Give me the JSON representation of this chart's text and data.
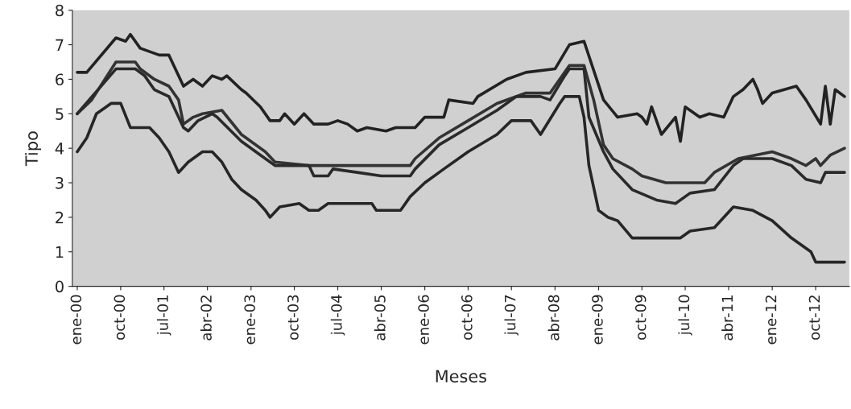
{
  "chart_data": {
    "type": "line",
    "xlabel": "Meses",
    "ylabel": "Tipo",
    "xlim": [
      "1999-12",
      "2013-05"
    ],
    "ylim": [
      0,
      8
    ],
    "yticks": [
      0,
      1,
      2,
      3,
      4,
      5,
      6,
      7,
      8
    ],
    "xticks": [
      {
        "value": "2000-01",
        "label": "ene-00"
      },
      {
        "value": "2000-10",
        "label": "oct-00"
      },
      {
        "value": "2001-07",
        "label": "jul-01"
      },
      {
        "value": "2002-04",
        "label": "abr-02"
      },
      {
        "value": "2003-01",
        "label": "ene-03"
      },
      {
        "value": "2003-10",
        "label": "oct-03"
      },
      {
        "value": "2004-07",
        "label": "jul-04"
      },
      {
        "value": "2005-04",
        "label": "abr-05"
      },
      {
        "value": "2006-01",
        "label": "ene-06"
      },
      {
        "value": "2006-10",
        "label": "oct-06"
      },
      {
        "value": "2007-07",
        "label": "jul-07"
      },
      {
        "value": "2008-04",
        "label": "abr-08"
      },
      {
        "value": "2009-01",
        "label": "ene-09"
      },
      {
        "value": "2009-10",
        "label": "oct-09"
      },
      {
        "value": "2010-07",
        "label": "jul-10"
      },
      {
        "value": "2011-04",
        "label": "abr-11"
      },
      {
        "value": "2012-01",
        "label": "ene-12"
      },
      {
        "value": "2012-10",
        "label": "oct-12"
      }
    ],
    "grid": false,
    "series": [
      {
        "color": "#222222",
        "x": [
          "2000-01",
          "2000-03",
          "2000-09",
          "2000-11",
          "2000-12",
          "2001-02",
          "2001-06",
          "2001-08",
          "2001-11",
          "2002-01",
          "2002-03",
          "2002-05",
          "2002-07",
          "2002-08",
          "2002-11",
          "2002-12",
          "2003-03",
          "2003-05",
          "2003-07",
          "2003-08",
          "2003-10",
          "2003-12",
          "2004-02",
          "2004-05",
          "2004-07",
          "2004-09",
          "2004-11",
          "2005-01",
          "2005-05",
          "2005-07",
          "2005-11",
          "2006-01",
          "2006-05",
          "2006-06",
          "2006-11",
          "2006-12",
          "2007-06",
          "2007-10",
          "2008-04",
          "2008-07",
          "2008-10",
          "2009-02",
          "2009-05",
          "2009-09",
          "2009-10",
          "2009-11",
          "2009-12",
          "2010-02",
          "2010-05",
          "2010-06",
          "2010-07",
          "2010-10",
          "2010-12",
          "2011-03",
          "2011-05",
          "2011-07",
          "2011-09",
          "2011-10",
          "2011-11",
          "2012-01",
          "2012-06",
          "2012-08",
          "2012-11",
          "2012-12",
          "2013-01",
          "2013-02",
          "2013-04"
        ],
        "values": [
          6.2,
          6.2,
          7.2,
          7.1,
          7.3,
          6.9,
          6.7,
          6.7,
          5.8,
          6.0,
          5.8,
          6.1,
          6.0,
          6.1,
          5.7,
          5.6,
          5.2,
          4.8,
          4.8,
          5.0,
          4.7,
          5.0,
          4.7,
          4.7,
          4.8,
          4.7,
          4.5,
          4.6,
          4.5,
          4.6,
          4.6,
          4.9,
          4.9,
          5.4,
          5.3,
          5.5,
          6.0,
          6.2,
          6.3,
          7.0,
          7.1,
          5.4,
          4.9,
          5.0,
          4.9,
          4.7,
          5.2,
          4.4,
          4.9,
          4.2,
          5.2,
          4.9,
          5.0,
          4.9,
          5.5,
          5.7,
          6.0,
          5.7,
          5.3,
          5.6,
          5.8,
          5.4,
          4.7,
          5.8,
          4.7,
          5.7,
          5.5
        ]
      },
      {
        "color": "#333333",
        "x": [
          "2000-01",
          "2000-04",
          "2000-09",
          "2001-01",
          "2001-02",
          "2001-05",
          "2001-08",
          "2001-10",
          "2001-11",
          "2002-01",
          "2002-03",
          "2002-07",
          "2002-11",
          "2003-04",
          "2003-06",
          "2004-01",
          "2005-10",
          "2005-11",
          "2006-04",
          "2006-10",
          "2007-04",
          "2007-10",
          "2008-03",
          "2008-07",
          "2008-10",
          "2008-12",
          "2009-02",
          "2009-04",
          "2009-08",
          "2009-10",
          "2010-03",
          "2010-11",
          "2011-01",
          "2011-06",
          "2012-01",
          "2012-05",
          "2012-08",
          "2012-10",
          "2012-11",
          "2013-01",
          "2013-04"
        ],
        "values": [
          5.0,
          5.4,
          6.5,
          6.5,
          6.3,
          6.0,
          5.8,
          5.4,
          4.7,
          4.9,
          5.0,
          5.1,
          4.4,
          3.9,
          3.6,
          3.5,
          3.5,
          3.7,
          4.3,
          4.8,
          5.3,
          5.6,
          5.6,
          6.4,
          6.4,
          5.4,
          4.1,
          3.7,
          3.4,
          3.2,
          3.0,
          3.0,
          3.3,
          3.7,
          3.9,
          3.7,
          3.5,
          3.7,
          3.5,
          3.8,
          4.0
        ]
      },
      {
        "color": "#2a2a2a",
        "x": [
          "2000-01",
          "2000-09",
          "2001-01",
          "2001-03",
          "2001-05",
          "2001-08",
          "2001-11",
          "2001-12",
          "2002-02",
          "2002-05",
          "2002-06",
          "2002-11",
          "2003-04",
          "2003-06",
          "2004-01",
          "2004-02",
          "2004-05",
          "2004-06",
          "2004-11",
          "2005-04",
          "2005-10",
          "2005-11",
          "2006-04",
          "2006-10",
          "2007-04",
          "2007-08",
          "2008-01",
          "2008-03",
          "2008-06",
          "2008-07",
          "2008-10",
          "2008-11",
          "2009-02",
          "2009-04",
          "2009-08",
          "2010-01",
          "2010-05",
          "2010-08",
          "2011-01",
          "2011-05",
          "2011-07",
          "2012-01",
          "2012-05",
          "2012-08",
          "2012-11",
          "2012-12",
          "2013-04"
        ],
        "values": [
          5.0,
          6.3,
          6.3,
          6.1,
          5.7,
          5.5,
          4.6,
          4.5,
          4.8,
          5.0,
          4.9,
          4.2,
          3.7,
          3.5,
          3.5,
          3.2,
          3.2,
          3.4,
          3.3,
          3.2,
          3.2,
          3.4,
          4.1,
          4.6,
          5.1,
          5.5,
          5.5,
          5.4,
          6.1,
          6.3,
          6.3,
          4.9,
          3.9,
          3.4,
          2.8,
          2.5,
          2.4,
          2.7,
          2.8,
          3.5,
          3.7,
          3.7,
          3.5,
          3.1,
          3.0,
          3.3,
          3.3
        ]
      },
      {
        "color": "#262626",
        "x": [
          "2000-01",
          "2000-03",
          "2000-05",
          "2000-06",
          "2000-08",
          "2000-10",
          "2000-12",
          "2001-04",
          "2001-06",
          "2001-08",
          "2001-10",
          "2001-12",
          "2002-03",
          "2002-05",
          "2002-07",
          "2002-09",
          "2002-11",
          "2003-02",
          "2003-04",
          "2003-05",
          "2003-07",
          "2003-11",
          "2004-01",
          "2004-03",
          "2004-05",
          "2005-02",
          "2005-03",
          "2005-08",
          "2005-10",
          "2006-01",
          "2006-05",
          "2006-10",
          "2007-04",
          "2007-07",
          "2007-11",
          "2008-01",
          "2008-05",
          "2008-06",
          "2008-09",
          "2008-10",
          "2008-11",
          "2009-01",
          "2009-03",
          "2009-05",
          "2009-08",
          "2010-06",
          "2010-08",
          "2011-01",
          "2011-05",
          "2011-09",
          "2012-01",
          "2012-05",
          "2012-09",
          "2012-10",
          "2013-04"
        ],
        "values": [
          3.9,
          4.3,
          5.0,
          5.1,
          5.3,
          5.3,
          4.6,
          4.6,
          4.3,
          3.9,
          3.3,
          3.6,
          3.9,
          3.9,
          3.6,
          3.1,
          2.8,
          2.5,
          2.2,
          2.0,
          2.3,
          2.4,
          2.2,
          2.2,
          2.4,
          2.4,
          2.2,
          2.2,
          2.6,
          3.0,
          3.4,
          3.9,
          4.4,
          4.8,
          4.8,
          4.4,
          5.3,
          5.5,
          5.5,
          4.9,
          3.5,
          2.2,
          2.0,
          1.9,
          1.4,
          1.4,
          1.6,
          1.7,
          2.3,
          2.2,
          1.9,
          1.4,
          1.0,
          0.7,
          0.7
        ]
      }
    ]
  }
}
